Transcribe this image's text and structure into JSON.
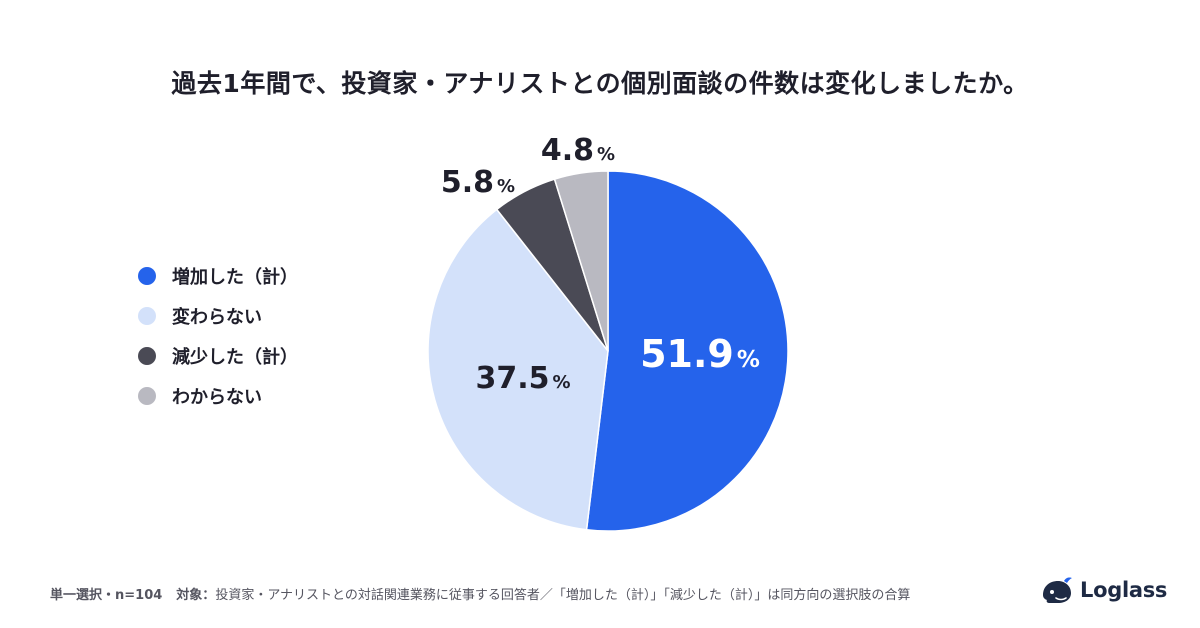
{
  "chart_data": {
    "type": "pie",
    "title": "過去1年間で、投資家・アナリストとの個別面談の件数は変化しましたか。",
    "slices": [
      {
        "label": "増加した（計）",
        "value": 51.9,
        "color": "#2563eb",
        "label_color": "#ffffff"
      },
      {
        "label": "変わらない",
        "value": 37.5,
        "color": "#d3e1fa",
        "label_color": "#1f1f2b"
      },
      {
        "label": "減少した（計）",
        "value": 5.8,
        "color": "#4a4a55",
        "label_color": "#1f1f2b"
      },
      {
        "label": "わからない",
        "value": 4.8,
        "color": "#b9b9c1",
        "label_color": "#1f1f2b"
      }
    ],
    "unit": "%",
    "legend": "left"
  },
  "footer": {
    "sample": "単一選択・n=104",
    "target_label": "対象：",
    "target_text": "投資家・アナリストとの対話関連業務に従事する回答者／「増加した（計）」「減少した（計）」は同方向の選択肢の合算"
  },
  "brand": {
    "name": "Loglass",
    "logo_icon": "whale-icon",
    "color": "#1e2a44"
  }
}
